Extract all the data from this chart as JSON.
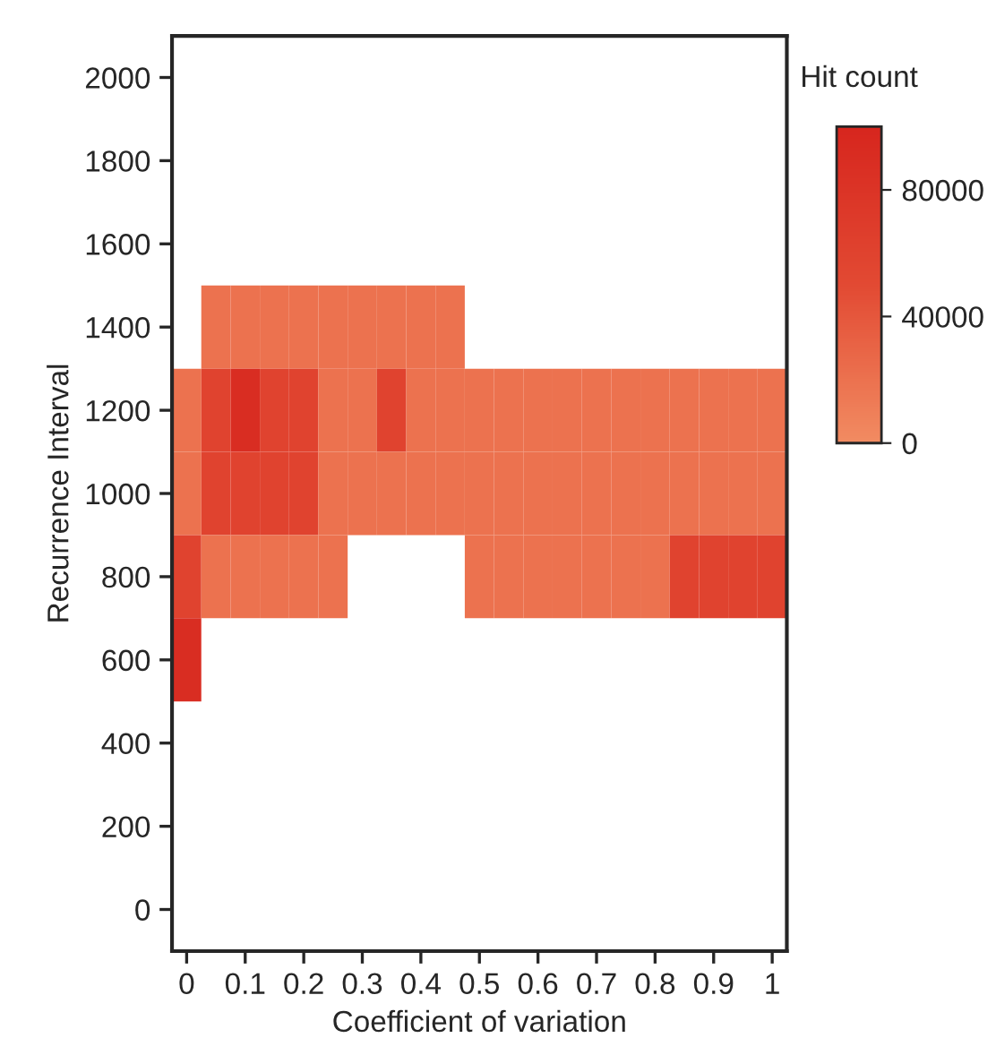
{
  "chart_data": {
    "type": "heatmap",
    "xlabel": "Coefficient of variation",
    "ylabel": "Recurrence Interval",
    "clabel": "Hit count",
    "categories": [
      "0",
      null,
      "0.1",
      null,
      "0.2",
      null,
      "0.3",
      null,
      "0.4",
      null,
      "0.5",
      null,
      "0.6",
      null,
      "0.7",
      null,
      "0.8",
      null,
      "0.9",
      null,
      "1"
    ],
    "y_categories": [
      "2000",
      "1800",
      "1600",
      "1400",
      "1200",
      "1000",
      "800",
      "600",
      "400",
      "200",
      "0"
    ],
    "cells": [
      [
        null,
        null,
        null,
        null,
        null,
        null,
        null,
        null,
        null,
        null,
        null,
        null,
        null,
        null,
        null,
        null,
        null,
        null,
        null,
        null,
        null
      ],
      [
        null,
        null,
        null,
        null,
        null,
        null,
        null,
        null,
        null,
        null,
        null,
        null,
        null,
        null,
        null,
        null,
        null,
        null,
        null,
        null,
        null
      ],
      [
        null,
        null,
        null,
        null,
        null,
        null,
        null,
        null,
        null,
        null,
        null,
        null,
        null,
        null,
        null,
        null,
        null,
        null,
        null,
        null,
        null
      ],
      [
        null,
        20000,
        20000,
        20000,
        20000,
        20000,
        20000,
        20000,
        20000,
        20000,
        null,
        null,
        null,
        null,
        null,
        null,
        null,
        null,
        null,
        null,
        null
      ],
      [
        20000,
        60000,
        90000,
        60000,
        60000,
        20000,
        20000,
        60000,
        20000,
        20000,
        20000,
        20000,
        20000,
        20000,
        20000,
        20000,
        20000,
        20000,
        20000,
        20000,
        20000
      ],
      [
        20000,
        60000,
        60000,
        60000,
        60000,
        20000,
        20000,
        20000,
        20000,
        20000,
        20000,
        20000,
        20000,
        20000,
        20000,
        20000,
        20000,
        20000,
        20000,
        20000,
        20000
      ],
      [
        60000,
        20000,
        20000,
        20000,
        20000,
        20000,
        null,
        null,
        null,
        null,
        20000,
        20000,
        20000,
        20000,
        20000,
        20000,
        20000,
        60000,
        60000,
        60000,
        60000
      ],
      [
        90000,
        null,
        null,
        null,
        null,
        null,
        null,
        null,
        null,
        null,
        null,
        null,
        null,
        null,
        null,
        null,
        null,
        null,
        null,
        null,
        null
      ],
      [
        null,
        null,
        null,
        null,
        null,
        null,
        null,
        null,
        null,
        null,
        null,
        null,
        null,
        null,
        null,
        null,
        null,
        null,
        null,
        null,
        null
      ],
      [
        null,
        null,
        null,
        null,
        null,
        null,
        null,
        null,
        null,
        null,
        null,
        null,
        null,
        null,
        null,
        null,
        null,
        null,
        null,
        null,
        null
      ],
      [
        null,
        null,
        null,
        null,
        null,
        null,
        null,
        null,
        null,
        null,
        null,
        null,
        null,
        null,
        null,
        null,
        null,
        null,
        null,
        null,
        null
      ]
    ],
    "colors": [
      "#f28c62",
      "#e24a33",
      "#d7261e"
    ],
    "clim": [
      0,
      100000
    ],
    "cticks": [
      0,
      40000,
      80000
    ]
  }
}
